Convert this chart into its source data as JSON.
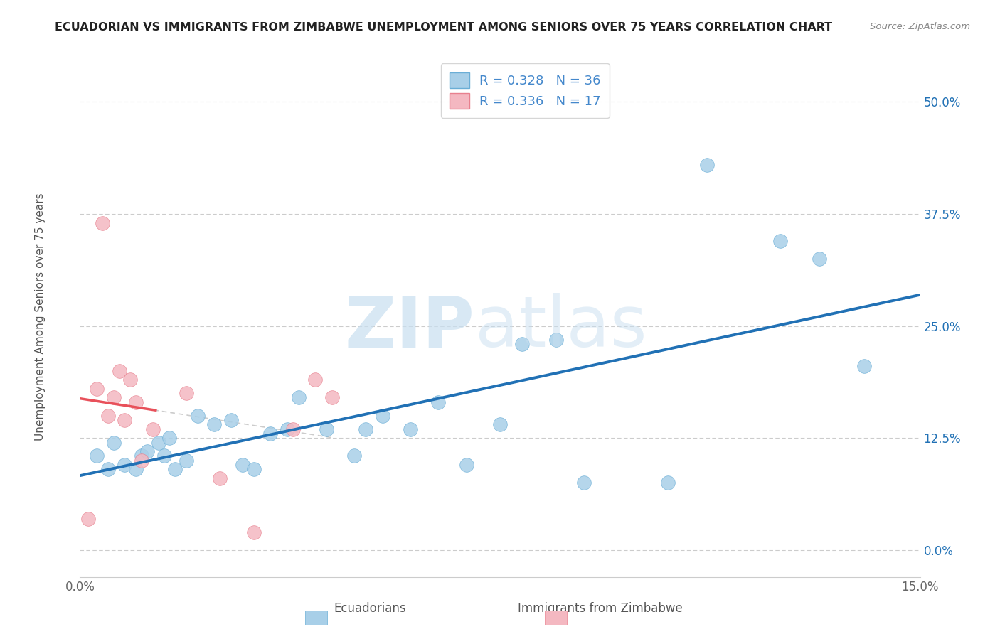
{
  "title": "ECUADORIAN VS IMMIGRANTS FROM ZIMBABWE UNEMPLOYMENT AMONG SENIORS OVER 75 YEARS CORRELATION CHART",
  "source": "Source: ZipAtlas.com",
  "ylabel": "Unemployment Among Seniors over 75 years",
  "xlim": [
    0.0,
    15.0
  ],
  "ylim": [
    -3.0,
    55.0
  ],
  "yticks": [
    0.0,
    12.5,
    25.0,
    37.5,
    50.0
  ],
  "ytick_labels": [
    "0.0%",
    "12.5%",
    "25.0%",
    "37.5%",
    "50.0%"
  ],
  "xticks": [
    0.0,
    2.5,
    5.0,
    7.5,
    10.0,
    12.5,
    15.0
  ],
  "xtick_labels": [
    "0.0%",
    "",
    "",
    "",
    "",
    "",
    "15.0%"
  ],
  "legend_R1": "R = 0.328",
  "legend_N1": "N = 36",
  "legend_R2": "R = 0.336",
  "legend_N2": "N = 17",
  "ecuadorians_x": [
    0.3,
    0.5,
    0.6,
    0.8,
    1.0,
    1.1,
    1.2,
    1.4,
    1.5,
    1.6,
    1.7,
    1.9,
    2.1,
    2.4,
    2.7,
    2.9,
    3.1,
    3.4,
    3.7,
    3.9,
    4.4,
    4.9,
    5.1,
    5.4,
    5.9,
    6.4,
    6.9,
    7.5,
    7.9,
    8.5,
    9.0,
    10.5,
    11.2,
    12.5,
    13.2,
    14.0
  ],
  "ecuadorians_y": [
    10.5,
    9.0,
    12.0,
    9.5,
    9.0,
    10.5,
    11.0,
    12.0,
    10.5,
    12.5,
    9.0,
    10.0,
    15.0,
    14.0,
    14.5,
    9.5,
    9.0,
    13.0,
    13.5,
    17.0,
    13.5,
    10.5,
    13.5,
    15.0,
    13.5,
    16.5,
    9.5,
    14.0,
    23.0,
    23.5,
    7.5,
    7.5,
    43.0,
    34.5,
    32.5,
    20.5
  ],
  "zimbabwe_x": [
    0.15,
    0.3,
    0.4,
    0.5,
    0.6,
    0.7,
    0.8,
    0.9,
    1.0,
    1.1,
    1.3,
    1.9,
    2.5,
    3.1,
    3.8,
    4.2,
    4.5
  ],
  "zimbabwe_y": [
    3.5,
    18.0,
    36.5,
    15.0,
    17.0,
    20.0,
    14.5,
    19.0,
    16.5,
    10.0,
    13.5,
    17.5,
    8.0,
    2.0,
    13.5,
    19.0,
    17.0
  ],
  "blue_color": "#a8cfe8",
  "blue_edge_color": "#6aaed6",
  "pink_color": "#f4b8c1",
  "pink_edge_color": "#e8808e",
  "blue_line_color": "#2171b5",
  "pink_line_color": "#e8505a",
  "background_color": "#ffffff",
  "grid_color": "#cccccc",
  "tick_color": "#666666",
  "title_color": "#222222",
  "source_color": "#888888",
  "ylabel_color": "#555555"
}
